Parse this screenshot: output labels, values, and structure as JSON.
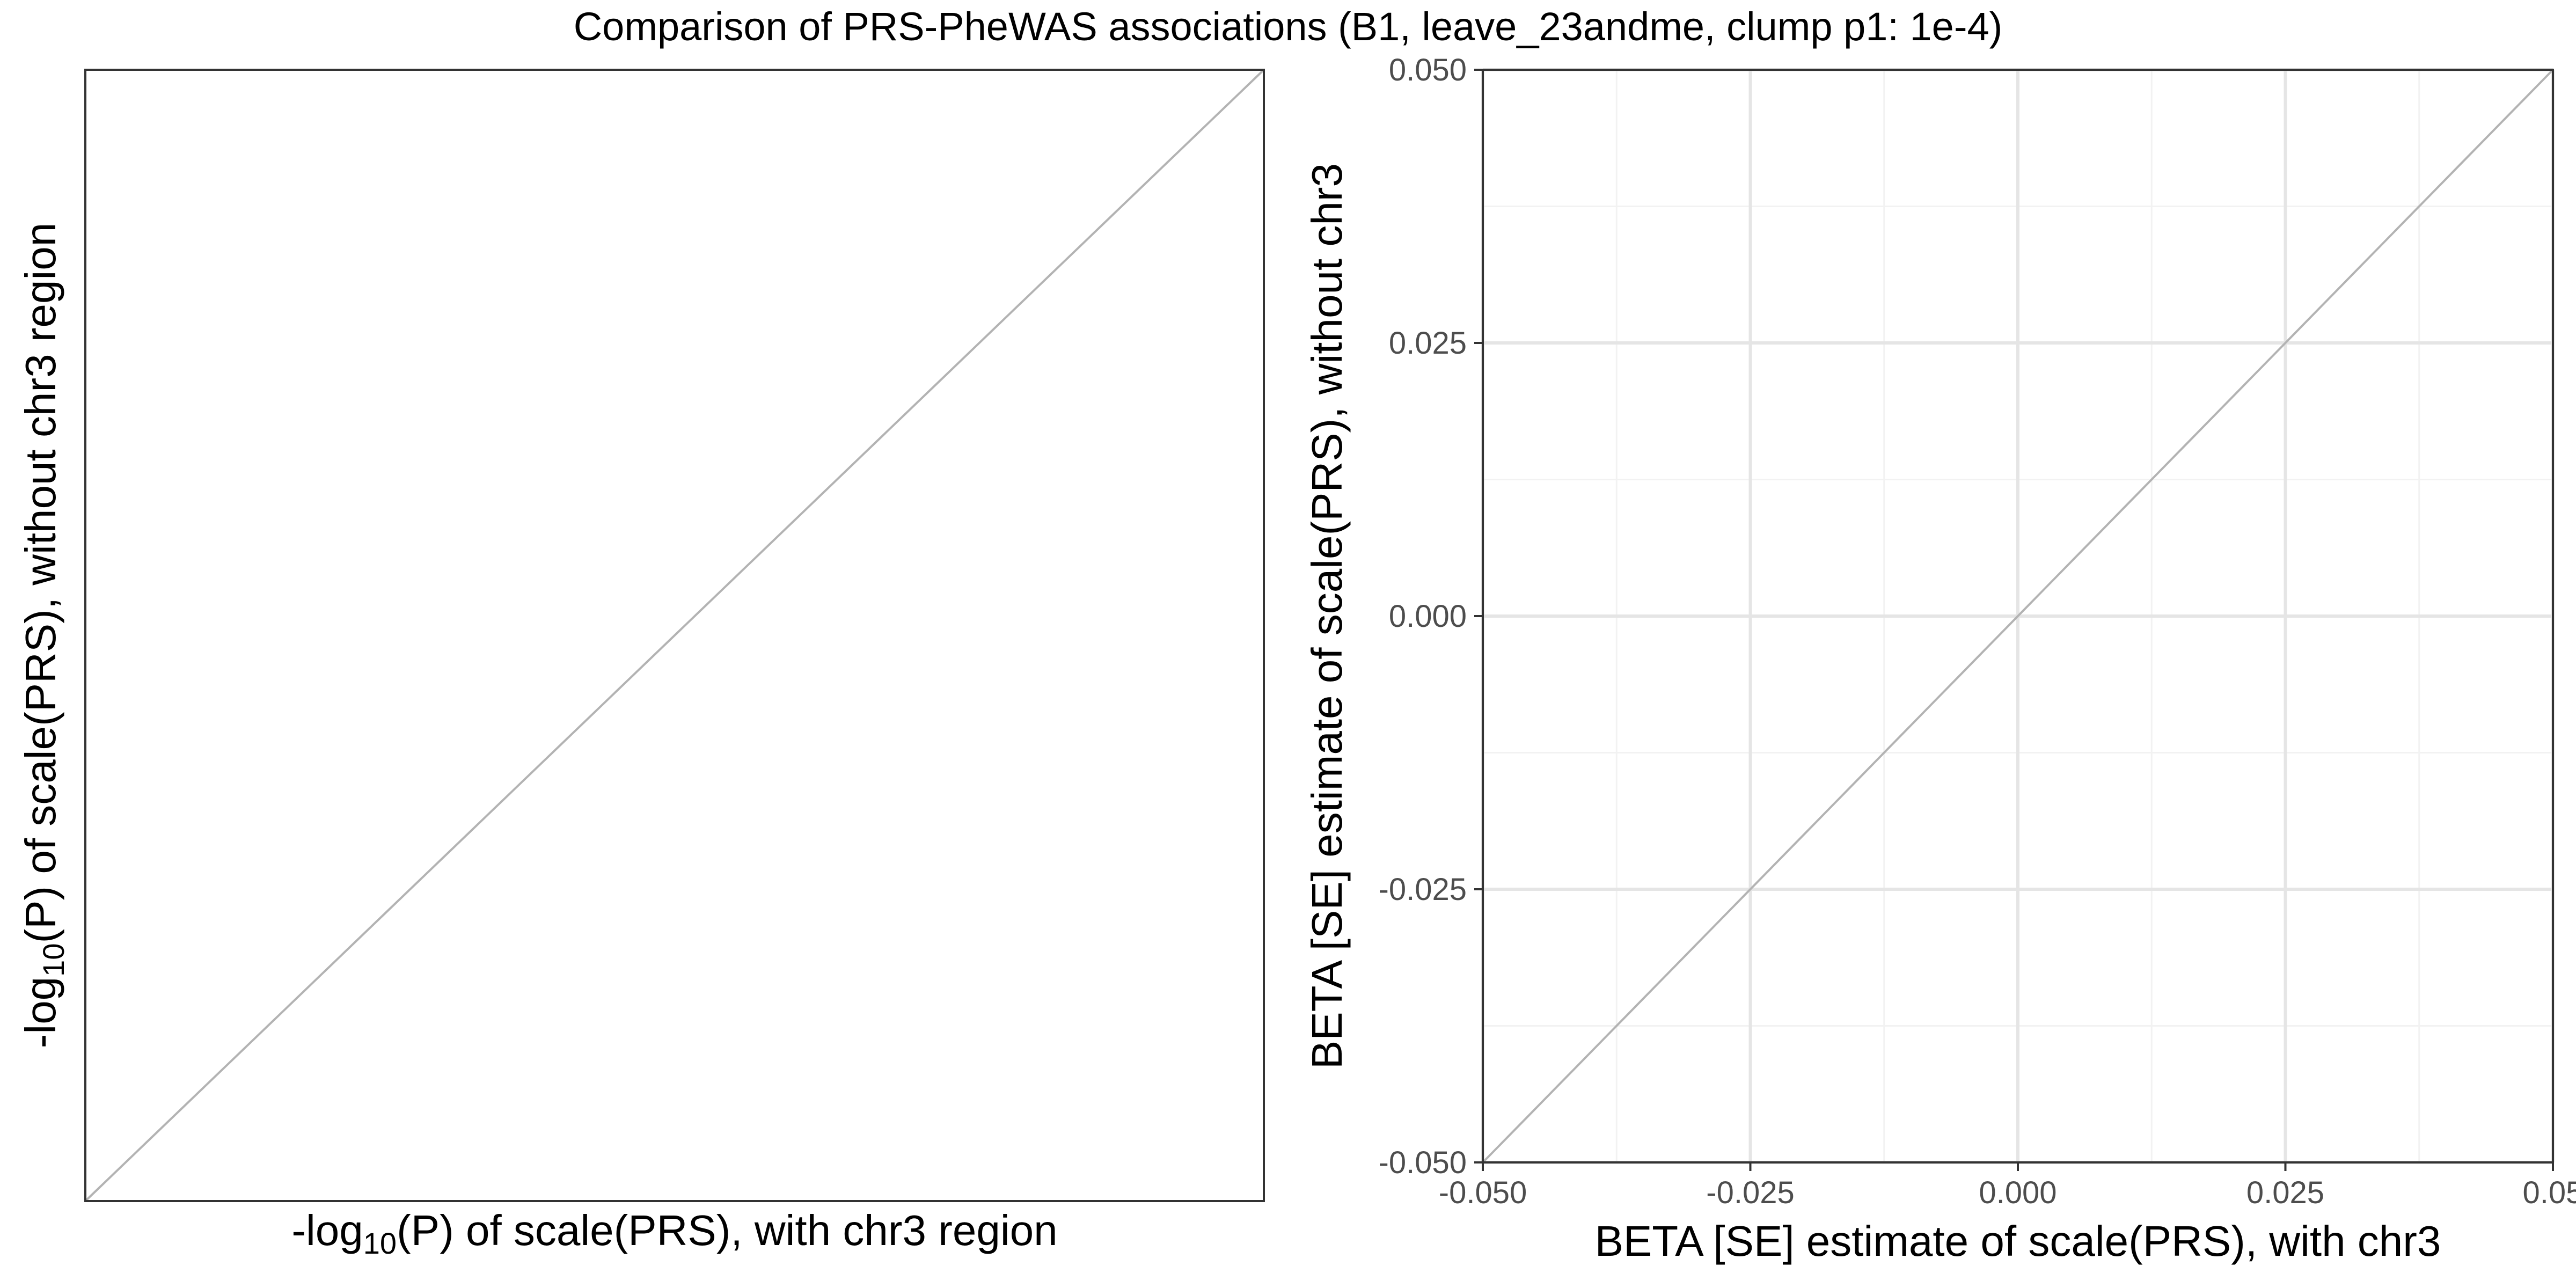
{
  "title": "Comparison of PRS-PheWAS associations (B1, leave_23andme, clump p1: 1e-4)",
  "chart_data": [
    {
      "type": "scatter",
      "panel": "left",
      "xlabel": {
        "prefix": "-log",
        "sub": "10",
        "suffix": "(P) of scale(PRS), with chr3 region"
      },
      "ylabel": {
        "prefix": "-log",
        "sub": "10",
        "suffix": "(P) of scale(PRS), without chr3 region"
      },
      "grid": false,
      "ticks": false,
      "identity_line": true,
      "series": [
        {
          "x": [],
          "y": []
        }
      ]
    },
    {
      "type": "scatter",
      "panel": "right",
      "xlabel": "BETA [SE] estimate of scale(PRS), with chr3",
      "ylabel": "BETA [SE] estimate of scale(PRS), without chr3",
      "xlim": [
        -0.05,
        0.05
      ],
      "ylim": [
        -0.05,
        0.05
      ],
      "xticks": [
        -0.05,
        -0.025,
        0.0,
        0.025,
        0.05
      ],
      "yticks": [
        -0.05,
        -0.025,
        0.0,
        0.025,
        0.05
      ],
      "xtick_labels": [
        "-0.050",
        "-0.025",
        "0.000",
        "0.025",
        "0.05"
      ],
      "ytick_labels": [
        "-0.050",
        "-0.025",
        "0.000",
        "0.025",
        "0.050"
      ],
      "grid": true,
      "identity_line": true,
      "series": [
        {
          "x": [],
          "y": []
        }
      ]
    }
  ],
  "colors": {
    "panel_border": "#333333",
    "grid_major": "#e5e5e5",
    "grid_minor": "#f2f2f2",
    "identity_line": "#b3b3b3",
    "tick_label": "#4d4d4d",
    "axis_title": "#000000"
  }
}
